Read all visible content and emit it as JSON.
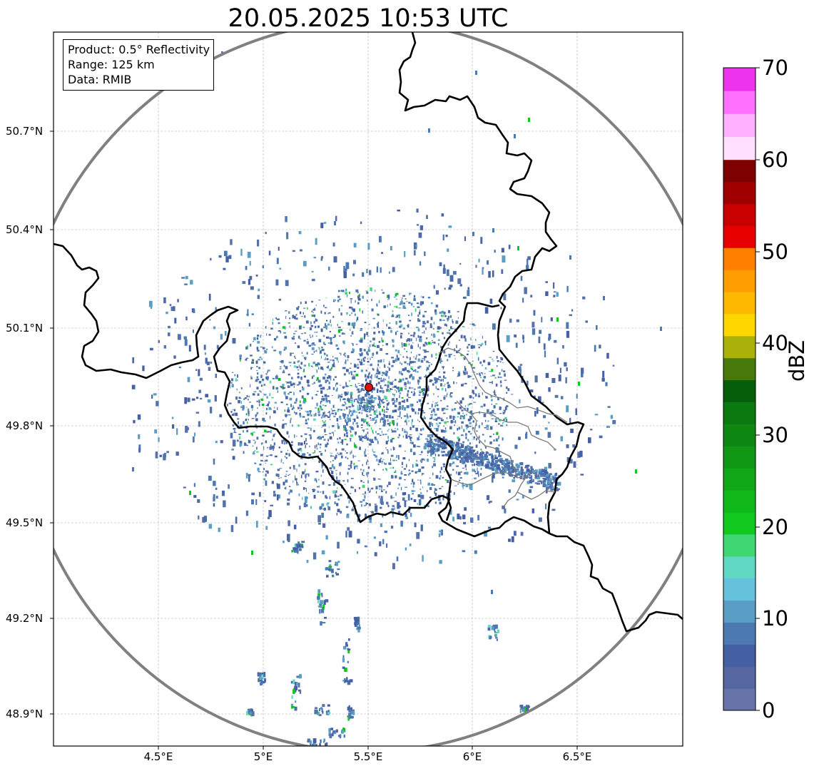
{
  "title": "20.05.2025 10:53 UTC",
  "info": {
    "product": "Product: 0.5° Reflectivity",
    "range": "Range: 125 km",
    "data": "Data: RMIB"
  },
  "map": {
    "lat_labels": [
      "50.7°N",
      "50.4°N",
      "50.1°N",
      "49.8°N",
      "49.5°N",
      "49.2°N",
      "48.9°N"
    ],
    "lon_labels": [
      "4.5°E",
      "5°E",
      "5.5°E",
      "6°E",
      "6.5°E"
    ],
    "radar_site": {
      "lon": 5.5,
      "lat": 49.915
    }
  },
  "colorbar": {
    "label": "dBZ",
    "min": 0,
    "max": 70,
    "ticks": [
      "0",
      "10",
      "20",
      "30",
      "40",
      "50",
      "60",
      "70"
    ],
    "colors": [
      "#6674aa",
      "#5566a0",
      "#445fa3",
      "#4d79b2",
      "#5a9ec6",
      "#66c2dc",
      "#5fd8c4",
      "#3fd774",
      "#10c81e",
      "#10b81a",
      "#10a816",
      "#109814",
      "#0e8812",
      "#0a7a10",
      "#055e0a",
      "#48780a",
      "#aab008",
      "#ffd700",
      "#ffb900",
      "#ff9e00",
      "#ff7f00",
      "#e80000",
      "#c80000",
      "#a00000",
      "#7e0000",
      "#ffe0ff",
      "#ffb0ff",
      "#ff70ff",
      "#ee33ee"
    ]
  }
}
